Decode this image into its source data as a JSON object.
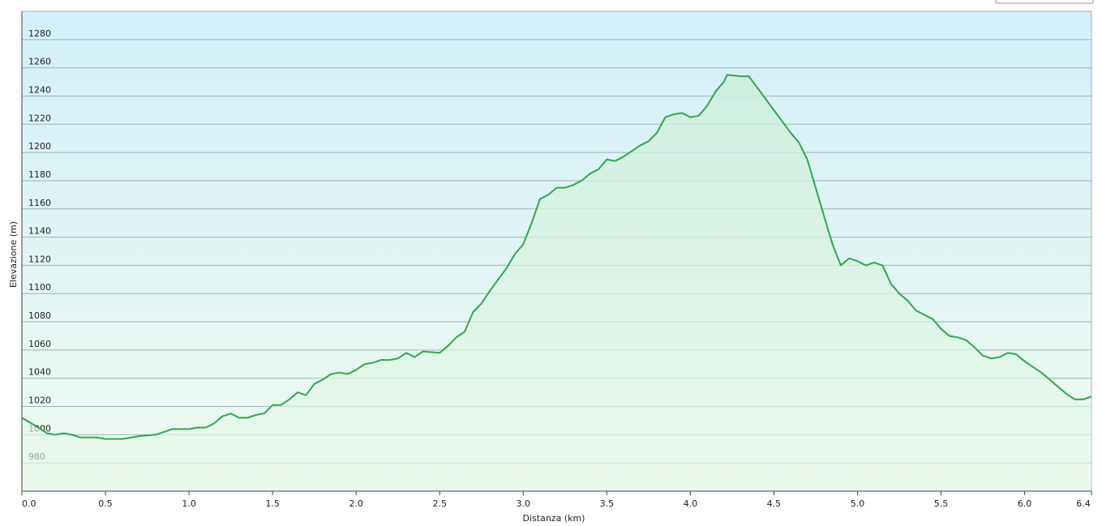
{
  "chart_data": {
    "type": "area",
    "xlabel": "Distanza  (km)",
    "ylabel": "Elevazione (m)",
    "x": [
      0,
      0.1,
      0.15,
      0.2,
      0.25,
      0.3,
      0.35,
      0.4,
      0.45,
      0.5,
      0.6,
      0.7,
      0.8,
      0.9,
      1.0,
      1.05,
      1.1,
      1.15,
      1.2,
      1.25,
      1.3,
      1.35,
      1.4,
      1.45,
      1.5,
      1.55,
      1.6,
      1.65,
      1.7,
      1.75,
      1.8,
      1.85,
      1.9,
      1.95,
      2.0,
      2.05,
      2.1,
      2.15,
      2.2,
      2.25,
      2.3,
      2.35,
      2.4,
      2.5,
      2.55,
      2.6,
      2.65,
      2.7,
      2.75,
      2.8,
      2.9,
      2.95,
      3.0,
      3.05,
      3.1,
      3.15,
      3.2,
      3.25,
      3.3,
      3.35,
      3.4,
      3.45,
      3.5,
      3.55,
      3.6,
      3.65,
      3.7,
      3.75,
      3.8,
      3.85,
      3.9,
      3.95,
      4.0,
      4.05,
      4.1,
      4.15,
      4.2,
      4.22,
      4.3,
      4.35,
      4.4,
      4.45,
      4.5,
      4.55,
      4.6,
      4.65,
      4.7,
      4.75,
      4.8,
      4.85,
      4.9,
      4.95,
      5.0,
      5.05,
      5.1,
      5.15,
      5.2,
      5.25,
      5.3,
      5.35,
      5.4,
      5.45,
      5.5,
      5.55,
      5.6,
      5.65,
      5.7,
      5.75,
      5.8,
      5.85,
      5.9,
      5.95,
      6.0,
      6.05,
      6.1,
      6.15,
      6.2,
      6.25,
      6.3,
      6.35,
      6.4
    ],
    "series": [
      {
        "color": "#2ea84a",
        "values": [
          1012,
          1005,
          1001,
          1000,
          1001,
          1000,
          998,
          998,
          998,
          997,
          997,
          999,
          1000,
          1004,
          1004,
          1005,
          1005,
          1008,
          1013,
          1015,
          1012,
          1012,
          1014,
          1015,
          1021,
          1021,
          1025,
          1030,
          1028,
          1036,
          1039,
          1043,
          1044,
          1043,
          1046,
          1050,
          1051,
          1053,
          1053,
          1054,
          1058,
          1055,
          1059,
          1058,
          1063,
          1069,
          1073,
          1087,
          1093,
          1102,
          1118,
          1128,
          1135,
          1150,
          1167,
          1170,
          1175,
          1175,
          1177,
          1180,
          1185,
          1188,
          1195,
          1194,
          1197,
          1201,
          1205,
          1208,
          1214,
          1225,
          1227,
          1228,
          1225,
          1226,
          1233,
          1243,
          1250,
          1255,
          1254,
          1254,
          1246,
          1238,
          1230,
          1222,
          1214,
          1207,
          1195,
          1175,
          1155,
          1135,
          1120,
          1125,
          1123,
          1120,
          1122,
          1120,
          1107,
          1100,
          1095,
          1088,
          1085,
          1082,
          1075,
          1070,
          1069,
          1067,
          1062,
          1056,
          1054,
          1055,
          1058,
          1057,
          1052,
          1048,
          1044,
          1039,
          1034,
          1029,
          1025,
          1025,
          1027
        ]
      }
    ],
    "xlim": [
      0,
      6.4
    ],
    "xticks": [
      {
        "value": 0,
        "label": "0.0"
      },
      0.5,
      {
        "value": 1,
        "label": "1.0"
      },
      1.5,
      {
        "value": 2,
        "label": "2.0"
      },
      2.5,
      {
        "value": 3,
        "label": "3.0"
      },
      3.5,
      {
        "value": 4,
        "label": "4.0"
      },
      4.5,
      {
        "value": 5,
        "label": "5.0"
      },
      5.5,
      {
        "value": 6,
        "label": "6.0"
      },
      6.4
    ],
    "ylim": [
      960,
      1300
    ],
    "yticks": [
      980,
      1000,
      1020,
      1040,
      1060,
      1080,
      1100,
      1120,
      1140,
      1160,
      1180,
      1200,
      1220,
      1240,
      1260,
      1280
    ],
    "grid": true
  }
}
